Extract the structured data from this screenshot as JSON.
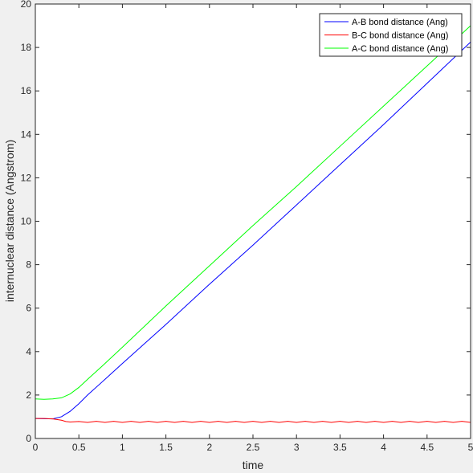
{
  "chart_data": {
    "type": "line",
    "title": "",
    "xlabel": "time",
    "ylabel": "internuclear distance (Angstrom)",
    "xlim": [
      0,
      5
    ],
    "ylim": [
      0,
      20
    ],
    "xticks": [
      0,
      0.5,
      1,
      1.5,
      2,
      2.5,
      3,
      3.5,
      4,
      4.5,
      5
    ],
    "xtick_labels": [
      "0",
      "0.5",
      "1",
      "1.5",
      "2",
      "2.5",
      "3",
      "3.5",
      "4",
      "4.5",
      "5"
    ],
    "yticks": [
      0,
      2,
      4,
      6,
      8,
      10,
      12,
      14,
      16,
      18,
      20
    ],
    "ytick_labels": [
      "0",
      "2",
      "4",
      "6",
      "8",
      "10",
      "12",
      "14",
      "16",
      "18",
      "20"
    ],
    "grid": false,
    "legend_position": "top-right",
    "series": [
      {
        "name": "A-B bond distance (Ang)",
        "color": "#0000ff",
        "x": [
          0,
          0.1,
          0.2,
          0.3,
          0.4,
          0.5,
          0.6,
          0.8,
          1,
          1.5,
          2,
          2.5,
          3,
          3.5,
          4,
          4.5,
          5
        ],
        "y": [
          0.92,
          0.91,
          0.9,
          1.0,
          1.25,
          1.6,
          2.0,
          2.72,
          3.45,
          5.25,
          7.1,
          8.9,
          10.75,
          12.6,
          14.45,
          16.35,
          18.25
        ]
      },
      {
        "name": "B-C bond distance (Ang)",
        "color": "#ff0000",
        "x": [
          0,
          0.1,
          0.2,
          0.3,
          0.35,
          0.4,
          0.5,
          0.6,
          0.7,
          0.8,
          0.9,
          1.0,
          1.1,
          1.2,
          1.3,
          1.4,
          1.5,
          1.6,
          1.7,
          1.8,
          1.9,
          2.0,
          2.1,
          2.2,
          2.3,
          2.4,
          2.5,
          2.6,
          2.7,
          2.8,
          2.9,
          3.0,
          3.1,
          3.2,
          3.3,
          3.4,
          3.5,
          3.6,
          3.7,
          3.8,
          3.9,
          4.0,
          4.1,
          4.2,
          4.3,
          4.4,
          4.5,
          4.6,
          4.7,
          4.8,
          4.9,
          5.0
        ],
        "y": [
          0.92,
          0.92,
          0.9,
          0.84,
          0.78,
          0.76,
          0.78,
          0.74,
          0.79,
          0.74,
          0.79,
          0.74,
          0.79,
          0.74,
          0.79,
          0.74,
          0.79,
          0.74,
          0.79,
          0.74,
          0.79,
          0.74,
          0.79,
          0.74,
          0.79,
          0.74,
          0.79,
          0.74,
          0.79,
          0.74,
          0.79,
          0.74,
          0.79,
          0.74,
          0.79,
          0.74,
          0.79,
          0.74,
          0.79,
          0.74,
          0.79,
          0.74,
          0.79,
          0.74,
          0.79,
          0.74,
          0.79,
          0.74,
          0.79,
          0.74,
          0.79,
          0.74
        ]
      },
      {
        "name": "A-C bond distance (Ang)",
        "color": "#00ff00",
        "x": [
          0,
          0.1,
          0.2,
          0.3,
          0.4,
          0.5,
          0.6,
          0.8,
          1,
          1.5,
          2,
          2.5,
          3,
          3.5,
          4,
          4.5,
          5
        ],
        "y": [
          1.82,
          1.8,
          1.82,
          1.87,
          2.05,
          2.35,
          2.72,
          3.45,
          4.2,
          6.1,
          7.95,
          9.8,
          11.6,
          13.45,
          15.3,
          17.15,
          19.0
        ]
      }
    ]
  }
}
